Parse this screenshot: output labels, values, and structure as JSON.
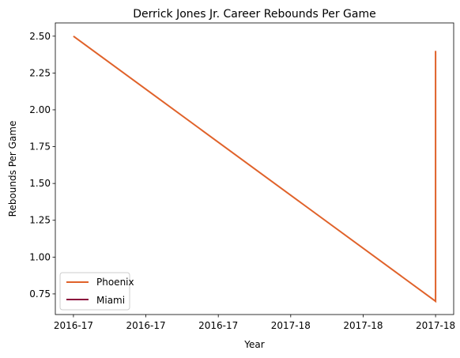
{
  "chart_data": {
    "type": "line",
    "title": "Derrick Jones Jr. Career Rebounds Per Game",
    "xlabel": "Year",
    "ylabel": "Rebounds Per Game",
    "x_tick_labels": [
      "2016-17",
      "2016-17",
      "2016-17",
      "2017-18",
      "2017-18",
      "2017-18"
    ],
    "y_ticks": [
      0.75,
      1.0,
      1.25,
      1.5,
      1.75,
      2.0,
      2.25,
      2.5
    ],
    "y_tick_labels": [
      "0.75",
      "1.00",
      "1.25",
      "1.50",
      "1.75",
      "2.00",
      "2.25",
      "2.50"
    ],
    "xlim": [
      -0.05,
      1.05
    ],
    "ylim": [
      0.61,
      2.59
    ],
    "grid": false,
    "legend_position": "lower left",
    "series": [
      {
        "name": "Phoenix",
        "color": "#e0622a",
        "points": [
          {
            "x": 0,
            "y": 2.5
          },
          {
            "x": 1,
            "y": 0.7
          },
          {
            "x": 1,
            "y": 2.4
          }
        ]
      },
      {
        "name": "Miami",
        "color": "#8b0a3c",
        "points": []
      }
    ]
  }
}
